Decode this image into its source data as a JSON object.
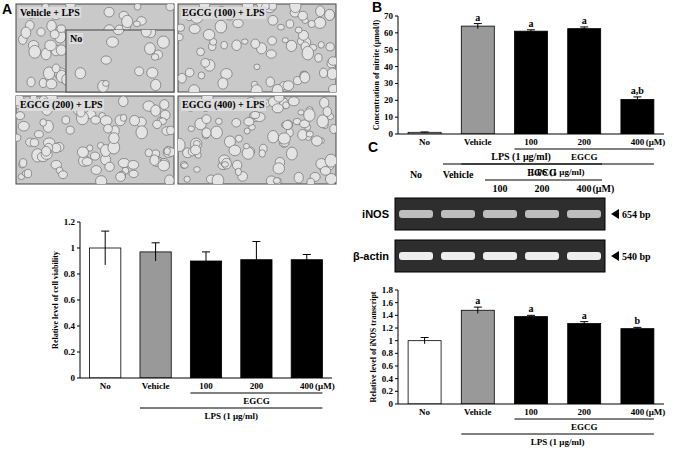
{
  "panel_labels": [
    "A",
    "B",
    "C"
  ],
  "micrographs": {
    "labels": [
      "Vehicle + LPS",
      "EGCG (100) + LPS",
      "EGCG (200) + LPS",
      "EGCG (400) + LPS"
    ],
    "inset_label": "No"
  },
  "gel": {
    "treatment_label": "LPS (1 μg/ml)",
    "group_label": "EGCG",
    "lanes": [
      "No",
      "Vehicle",
      "100",
      "200",
      "400"
    ],
    "unit_label": "(μM)",
    "bands": [
      {
        "name": "iNOS",
        "size": "654 bp"
      },
      {
        "name": "β-actin",
        "size": "540 bp"
      }
    ]
  },
  "chart_data": [
    {
      "type": "bar",
      "y_label": "Relative level of cell viability",
      "categories": [
        "No",
        "Vehicle",
        "100",
        "200",
        "400"
      ],
      "values": [
        1,
        0.97,
        0.9,
        0.91,
        0.91
      ],
      "errors": [
        0.13,
        0.07,
        0.07,
        0.14,
        0.04
      ],
      "colors": [
        "#ffffff",
        "#999999",
        "#000000",
        "#000000",
        "#000000"
      ],
      "ylim": [
        0,
        1.2
      ],
      "yticks": [
        0,
        0.2,
        0.4,
        0.6,
        0.8,
        1,
        1.2
      ],
      "annotations": [
        "(μM)",
        "EGCG",
        "LPS (1 μg/ml)"
      ]
    },
    {
      "type": "bar",
      "y_label": "Concentration of nitrite (μmol/l)",
      "categories": [
        "No",
        "Vehicle",
        "100",
        "200",
        "400"
      ],
      "values": [
        1,
        64,
        61,
        62.5,
        20.5
      ],
      "errors": [
        0.2,
        1.5,
        0.8,
        1,
        1.5
      ],
      "significance": [
        null,
        "a",
        "a",
        "a",
        "a,b"
      ],
      "colors": [
        "#ffffff",
        "#999999",
        "#000000",
        "#000000",
        "#000000"
      ],
      "ylim": [
        0,
        70
      ],
      "yticks": [
        0,
        10,
        20,
        30,
        40,
        50,
        60,
        70
      ],
      "annotations": [
        "(μM)",
        "EGCG",
        "LPS (1 μg/ml)"
      ]
    },
    {
      "type": "bar",
      "y_label": "Relative level of iNOS transcript",
      "categories": [
        "No",
        "Vehicle",
        "100",
        "200",
        "400"
      ],
      "values": [
        1,
        1.48,
        1.38,
        1.27,
        1.19
      ],
      "errors": [
        0.05,
        0.05,
        0.02,
        0.03,
        0.02
      ],
      "significance": [
        null,
        "a",
        "a",
        "a",
        "b"
      ],
      "colors": [
        "#ffffff",
        "#999999",
        "#000000",
        "#000000",
        "#000000"
      ],
      "ylim": [
        0,
        1.8
      ],
      "yticks": [
        0,
        0.2,
        0.4,
        0.6,
        0.8,
        1,
        1.2,
        1.4,
        1.6,
        1.8
      ],
      "annotations": [
        "(μM)",
        "EGCG",
        "LPS (1 μg/ml)"
      ]
    }
  ]
}
